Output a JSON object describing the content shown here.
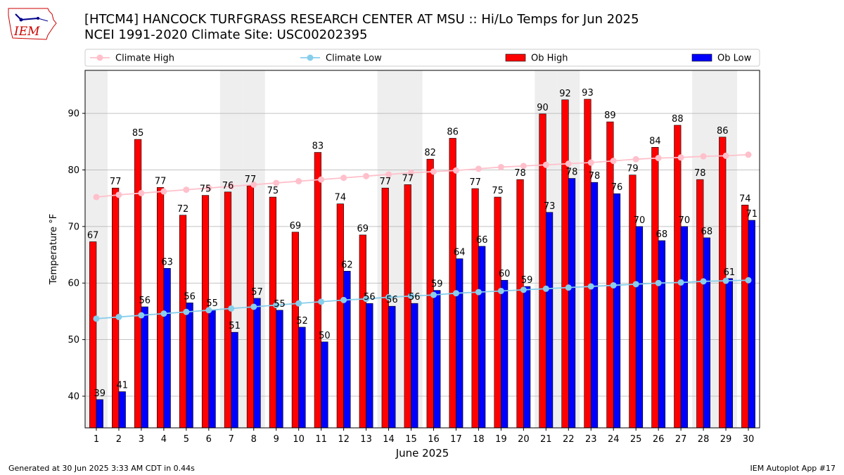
{
  "header": {
    "title_line1": "[HTCM4] HANCOCK TURFGRASS RESEARCH CENTER AT MSU :: Hi/Lo Temps for Jun 2025",
    "title_line2": "NCEI 1991-2020 Climate Site: USC00202395"
  },
  "logo": {
    "text": "IEM",
    "icon": "iowa-state-outline-logo"
  },
  "footer": {
    "generated": "Generated at 30 Jun 2025 3:33 AM CDT in 0.44s",
    "app": "IEM Autoplot App #17"
  },
  "colors": {
    "ob_high": "#ff0000",
    "ob_low": "#0000ff",
    "climate_high": "#ffc0cb",
    "climate_low": "#87ceeb",
    "weekend_shade": "#eeeeee",
    "grid": "#b0b0b0"
  },
  "chart_data": {
    "type": "bar",
    "xlabel": "June 2025",
    "ylabel": "Temperature °F",
    "ylim": [
      34.4,
      97.6
    ],
    "yticks": [
      40,
      50,
      60,
      70,
      80,
      90
    ],
    "grid": "y",
    "legend_position": "top",
    "categories": [
      "1",
      "2",
      "3",
      "4",
      "5",
      "6",
      "7",
      "8",
      "9",
      "10",
      "11",
      "12",
      "13",
      "14",
      "15",
      "16",
      "17",
      "18",
      "19",
      "20",
      "21",
      "22",
      "23",
      "24",
      "25",
      "26",
      "27",
      "28",
      "29",
      "30"
    ],
    "shaded_days": [
      1,
      7,
      8,
      14,
      15,
      21,
      22,
      28,
      29
    ],
    "series": [
      {
        "name": "Climate High",
        "kind": "line",
        "values": [
          75.2,
          75.6,
          75.9,
          76.2,
          76.5,
          76.8,
          77.1,
          77.4,
          77.7,
          78.0,
          78.3,
          78.6,
          78.9,
          79.2,
          79.5,
          79.7,
          79.9,
          80.2,
          80.5,
          80.7,
          80.9,
          81.1,
          81.3,
          81.6,
          81.9,
          82.1,
          82.2,
          82.4,
          82.5,
          82.7
        ]
      },
      {
        "name": "Climate Low",
        "kind": "line",
        "values": [
          53.7,
          54.0,
          54.3,
          54.6,
          54.9,
          55.2,
          55.5,
          55.8,
          56.1,
          56.4,
          56.7,
          57.0,
          57.2,
          57.5,
          57.7,
          57.9,
          58.2,
          58.4,
          58.6,
          58.8,
          59.0,
          59.2,
          59.4,
          59.6,
          59.8,
          60.0,
          60.1,
          60.3,
          60.4,
          60.5
        ]
      },
      {
        "name": "Ob High",
        "kind": "bar",
        "values": [
          67.3,
          76.8,
          85.4,
          76.9,
          72.0,
          75.5,
          76.1,
          77.2,
          75.2,
          69.0,
          83.1,
          74.0,
          68.5,
          76.8,
          77.4,
          81.9,
          85.6,
          76.7,
          75.2,
          78.3,
          89.9,
          92.4,
          92.5,
          88.5,
          79.1,
          84.0,
          87.9,
          78.3,
          85.8,
          73.8
        ]
      },
      {
        "name": "Ob Low",
        "kind": "bar",
        "values": [
          39.4,
          40.8,
          55.8,
          62.6,
          56.5,
          55.3,
          51.3,
          57.3,
          55.2,
          52.2,
          49.6,
          62.1,
          56.4,
          55.9,
          56.4,
          58.7,
          64.3,
          66.5,
          60.5,
          59.4,
          72.5,
          78.5,
          77.8,
          75.8,
          70.0,
          67.5,
          70.0,
          68.0,
          60.8,
          71.1
        ]
      }
    ],
    "high_labels": [
      "67",
      "77",
      "85",
      "77",
      "72",
      "75",
      "76",
      "77",
      "75",
      "69",
      "83",
      "74",
      "69",
      "77",
      "77",
      "82",
      "86",
      "77",
      "75",
      "78",
      "90",
      "92",
      "93",
      "89",
      "79",
      "84",
      "88",
      "78",
      "86",
      "74"
    ],
    "low_labels": [
      "39",
      "41",
      "56",
      "63",
      "56",
      "55",
      "51",
      "57",
      "55",
      "52",
      "50",
      "62",
      "56",
      "56",
      "56",
      "59",
      "64",
      "66",
      "60",
      "59",
      "73",
      "78",
      "78",
      "76",
      "70",
      "68",
      "70",
      "68",
      "61",
      "71"
    ]
  }
}
